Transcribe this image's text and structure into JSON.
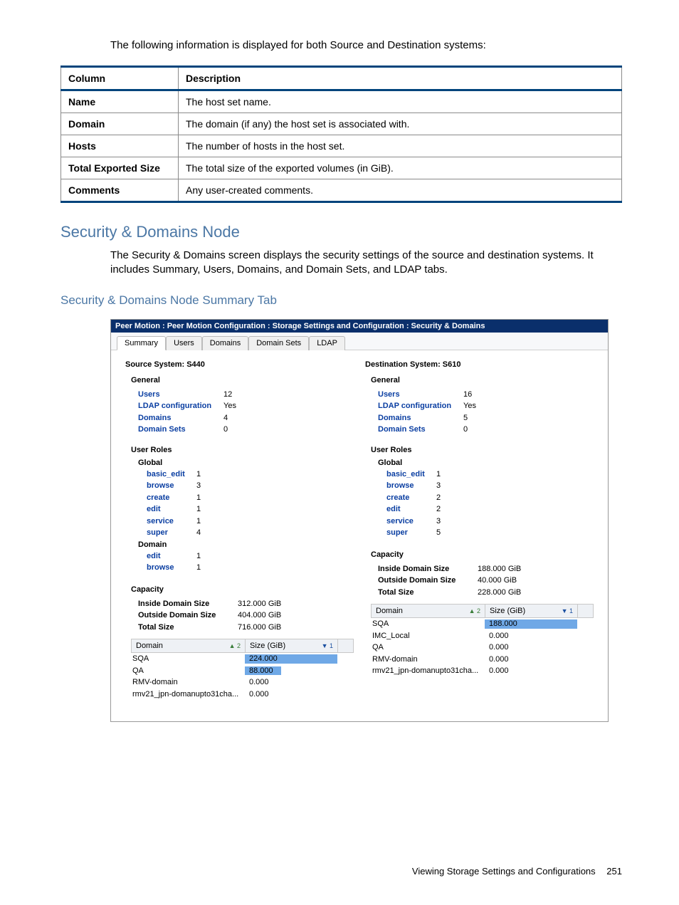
{
  "intro": "The following information is displayed for both Source and Destination systems:",
  "table_headers": {
    "col": "Column",
    "desc": "Description"
  },
  "table_rows": [
    {
      "col": "Name",
      "desc": "The host set name."
    },
    {
      "col": "Domain",
      "desc": "The domain (if any) the host set is associated with."
    },
    {
      "col": "Hosts",
      "desc": "The number of hosts in the host set."
    },
    {
      "col": "Total Exported Size",
      "desc": "The total size of the exported volumes (in GiB)."
    },
    {
      "col": "Comments",
      "desc": "Any user-created comments."
    }
  ],
  "heading1": "Security & Domains Node",
  "body1": "The Security & Domains screen displays the security settings of the source and destination systems. It includes Summary, Users, Domains, and Domain Sets, and LDAP tabs.",
  "heading2": "Security & Domains Node Summary Tab",
  "screenshot": {
    "titlebar": "Peer Motion : Peer Motion Configuration : Storage Settings and Configuration : Security & Domains",
    "tabs": [
      "Summary",
      "Users",
      "Domains",
      "Domain Sets",
      "LDAP"
    ],
    "active_tab": 0,
    "source": {
      "title": "Source System: S440",
      "general_label": "General",
      "general": [
        {
          "key": "Users",
          "val": "12",
          "link": true
        },
        {
          "key": "LDAP configuration",
          "val": "Yes",
          "link": true
        },
        {
          "key": "Domains",
          "val": "4",
          "link": true
        },
        {
          "key": "Domain Sets",
          "val": "0",
          "link": true
        }
      ],
      "roles_label": "User Roles",
      "global_label": "Global",
      "global_roles": [
        {
          "name": "basic_edit",
          "val": "1"
        },
        {
          "name": "browse",
          "val": "3"
        },
        {
          "name": "create",
          "val": "1"
        },
        {
          "name": "edit",
          "val": "1"
        },
        {
          "name": "service",
          "val": "1"
        },
        {
          "name": "super",
          "val": "4"
        }
      ],
      "domain_label": "Domain",
      "domain_roles": [
        {
          "name": "edit",
          "val": "1"
        },
        {
          "name": "browse",
          "val": "1"
        }
      ],
      "capacity_label": "Capacity",
      "capacity": [
        {
          "key": "Inside Domain Size",
          "val": "312.000 GiB"
        },
        {
          "key": "Outside Domain Size",
          "val": "404.000 GiB"
        },
        {
          "key": "Total Size",
          "val": "716.000 GiB"
        }
      ],
      "mini_headers": {
        "domain": "Domain",
        "size": "Size (GiB)",
        "sort1": "2",
        "sort2": "1"
      },
      "mini_rows": [
        {
          "domain": "SQA",
          "size": "224.000",
          "bar_pct": 100
        },
        {
          "domain": "QA",
          "size": "88.000",
          "bar_pct": 39
        },
        {
          "domain": "RMV-domain",
          "size": "0.000",
          "bar_pct": 0
        },
        {
          "domain": "rmv21_jpn-domanupto31cha...",
          "size": "0.000",
          "bar_pct": 0
        }
      ]
    },
    "dest": {
      "title": "Destination System: S610",
      "general_label": "General",
      "general": [
        {
          "key": "Users",
          "val": "16",
          "link": true
        },
        {
          "key": "LDAP configuration",
          "val": "Yes",
          "link": true
        },
        {
          "key": "Domains",
          "val": "5",
          "link": true
        },
        {
          "key": "Domain Sets",
          "val": "0",
          "link": true
        }
      ],
      "roles_label": "User Roles",
      "global_label": "Global",
      "global_roles": [
        {
          "name": "basic_edit",
          "val": "1"
        },
        {
          "name": "browse",
          "val": "3"
        },
        {
          "name": "create",
          "val": "2"
        },
        {
          "name": "edit",
          "val": "2"
        },
        {
          "name": "service",
          "val": "3"
        },
        {
          "name": "super",
          "val": "5"
        }
      ],
      "capacity_label": "Capacity",
      "capacity": [
        {
          "key": "Inside Domain Size",
          "val": "188.000 GiB"
        },
        {
          "key": "Outside Domain Size",
          "val": "40.000 GiB"
        },
        {
          "key": "Total Size",
          "val": "228.000 GiB"
        }
      ],
      "mini_headers": {
        "domain": "Domain",
        "size": "Size (GiB)",
        "sort1": "2",
        "sort2": "1"
      },
      "mini_rows": [
        {
          "domain": "SQA",
          "size": "188.000",
          "bar_pct": 100
        },
        {
          "domain": "IMC_Local",
          "size": "0.000",
          "bar_pct": 0
        },
        {
          "domain": "QA",
          "size": "0.000",
          "bar_pct": 0
        },
        {
          "domain": "RMV-domain",
          "size": "0.000",
          "bar_pct": 0
        },
        {
          "domain": "rmv21_jpn-domanupto31cha...",
          "size": "0.000",
          "bar_pct": 0
        }
      ]
    }
  },
  "footer": {
    "text": "Viewing Storage Settings and Configurations",
    "page": "251"
  },
  "colors": {
    "heading": "#4b77a5",
    "titlebar_bg": "#0a2f6b",
    "link": "#0b3fa2",
    "bar": "#6fa8e6",
    "table_border": "#00447c"
  }
}
